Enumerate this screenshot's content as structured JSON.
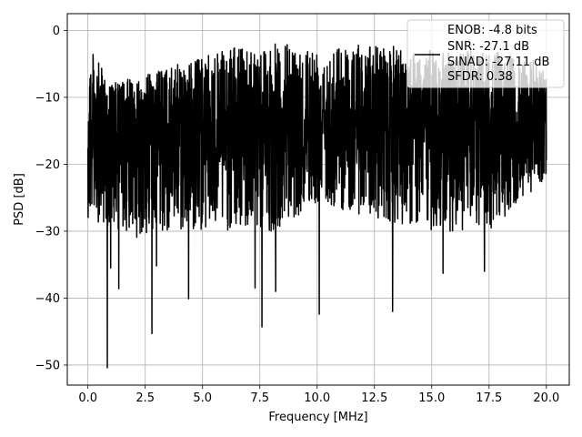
{
  "chart_data": {
    "type": "line",
    "title": "",
    "xlabel": "Frequency [MHz]",
    "ylabel": "PSD [dB]",
    "xlim": [
      -0.9,
      21.0
    ],
    "ylim": [
      -53,
      2.5
    ],
    "grid": true,
    "x_ticks": [
      0.0,
      2.5,
      5.0,
      7.5,
      10.0,
      12.5,
      15.0,
      17.5,
      20.0
    ],
    "x_tick_labels": [
      "0.0",
      "2.5",
      "5.0",
      "7.5",
      "10.0",
      "12.5",
      "15.0",
      "17.5",
      "20.0"
    ],
    "y_ticks": [
      0,
      -10,
      -20,
      -30,
      -40,
      -50
    ],
    "y_tick_labels": [
      "0",
      "−10",
      "−20",
      "−30",
      "−40",
      "−50"
    ],
    "series_color": "#000000",
    "x_range": [
      0.0,
      20.0
    ],
    "typical_level_db": -13,
    "envelope_top": [
      [
        0.0,
        -2
      ],
      [
        1.0,
        -8
      ],
      [
        3.0,
        -6
      ],
      [
        5.0,
        -4
      ],
      [
        7.0,
        -2
      ],
      [
        10.0,
        -2
      ],
      [
        12.5,
        -2
      ],
      [
        15.0,
        -3
      ],
      [
        17.5,
        -3
      ],
      [
        20.0,
        -5
      ]
    ],
    "envelope_bottom": [
      [
        0.0,
        -28
      ],
      [
        2.0,
        -31
      ],
      [
        5.0,
        -30
      ],
      [
        8.0,
        -30
      ],
      [
        10.0,
        -26
      ],
      [
        12.5,
        -28
      ],
      [
        15.0,
        -30
      ],
      [
        17.5,
        -30
      ],
      [
        20.0,
        -22
      ]
    ],
    "notable_dips": [
      {
        "x": 0.85,
        "y": -50.4
      },
      {
        "x": 1.35,
        "y": -38.6
      },
      {
        "x": 2.8,
        "y": -45.3
      },
      {
        "x": 4.4,
        "y": -40.1
      },
      {
        "x": 7.6,
        "y": -44.3
      },
      {
        "x": 7.3,
        "y": -38.5
      },
      {
        "x": 10.1,
        "y": -42.4
      },
      {
        "x": 13.3,
        "y": -42.0
      },
      {
        "x": 15.5,
        "y": -36.3
      },
      {
        "x": 17.3,
        "y": -36.0
      },
      {
        "x": 1.0,
        "y": -35.5
      },
      {
        "x": 3.0,
        "y": -35.2
      },
      {
        "x": 8.2,
        "y": -39.0
      }
    ],
    "legend": {
      "placement": "top-right",
      "entries": [
        "ENOB: -4.8 bits",
        "SNR: -27.1 dB",
        "SINAD: -27.11 dB",
        "SFDR: 0.38"
      ]
    }
  }
}
